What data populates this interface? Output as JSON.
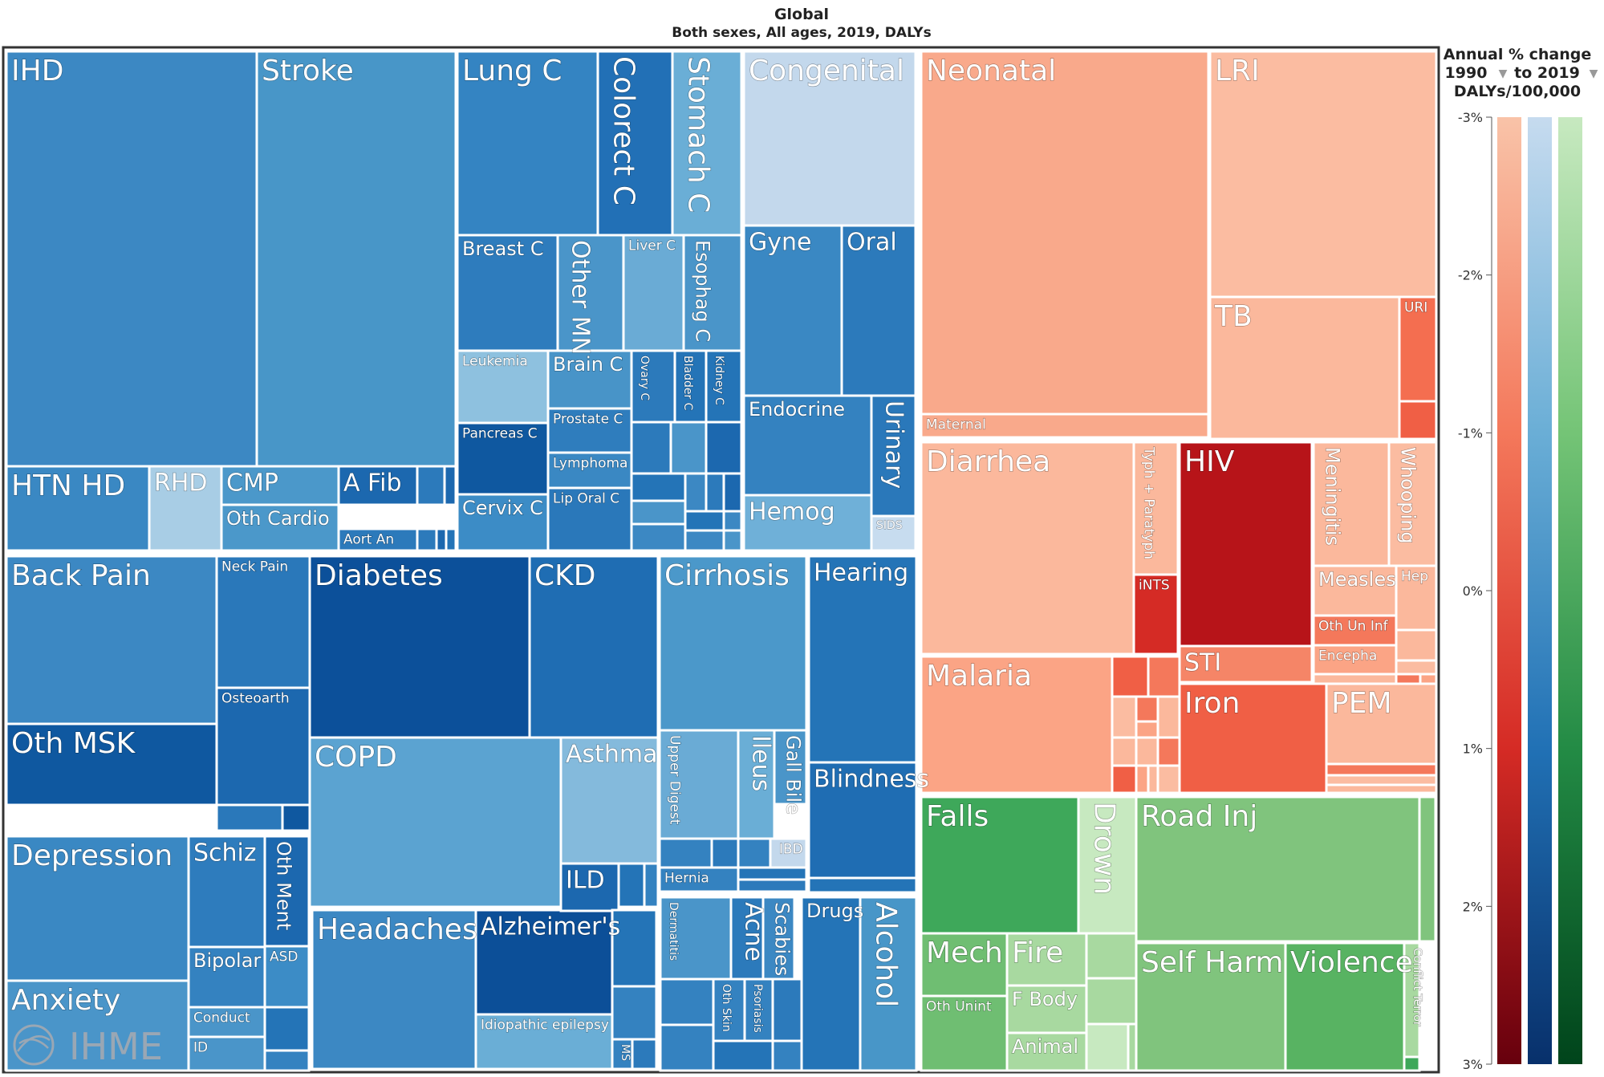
{
  "chart_data": {
    "type": "treemap",
    "title": "Global",
    "subtitle": "Both sexes, All ages, 2019, DALYs",
    "legend": {
      "title_lines": [
        "Annual % change",
        "1990",
        "to 2019",
        "DALYs/100,000"
      ],
      "ticks": [
        "-3%",
        "-2%",
        "-1%",
        "0%",
        "1%",
        "2%",
        "3%"
      ],
      "colors": {
        "communicable": [
          "#f9c3a8",
          "#f4785b",
          "#d52b25",
          "#67000d"
        ],
        "ncd": [
          "#c6dbef",
          "#6aaed6",
          "#2171b5",
          "#08306b"
        ],
        "injuries": [
          "#c7e9c0",
          "#74c476",
          "#238b45",
          "#00441b"
        ]
      }
    },
    "logo": "IHME",
    "cells": [
      {
        "label": "IHD",
        "color": "#3c88c3",
        "size": "xl",
        "vertical": false
      },
      {
        "label": "Stroke",
        "color": "#4896c8",
        "size": "xl",
        "vertical": false
      },
      {
        "label": "Lung C",
        "color": "#3484c2",
        "size": "xl",
        "vertical": false
      },
      {
        "label": "Colorect C",
        "color": "#2270b6",
        "size": "xl",
        "vertical": true
      },
      {
        "label": "Stomach C",
        "color": "#6aaed6",
        "size": "xl",
        "vertical": true
      },
      {
        "label": "Congenital",
        "color": "#c3d8ec",
        "size": "xl",
        "vertical": false
      },
      {
        "label": "Breast C",
        "color": "#2e7cbd",
        "size": "m",
        "vertical": false
      },
      {
        "label": "Other MN",
        "color": "#4a95c9",
        "size": "l",
        "vertical": true
      },
      {
        "label": "Liver C",
        "color": "#6aabd5",
        "size": "s",
        "vertical": false
      },
      {
        "label": "Esophag C",
        "color": "#4a95c9",
        "size": "m",
        "vertical": true
      },
      {
        "label": "Gyne",
        "color": "#3a88c3",
        "size": "l",
        "vertical": false
      },
      {
        "label": "Oral",
        "color": "#2c7abb",
        "size": "l",
        "vertical": false
      },
      {
        "label": "Leukemia",
        "color": "#8ec1df",
        "size": "s",
        "vertical": false
      },
      {
        "label": "Brain C",
        "color": "#4894c8",
        "size": "m",
        "vertical": false
      },
      {
        "label": "Ovary C",
        "color": "#2c7abb",
        "size": "xs",
        "vertical": true
      },
      {
        "label": "Bladder C",
        "color": "#2474b7",
        "size": "xs",
        "vertical": true
      },
      {
        "label": "Kidney C",
        "color": "#2474b7",
        "size": "xs",
        "vertical": true
      },
      {
        "label": "Prostate C",
        "color": "#2f7dbd",
        "size": "s",
        "vertical": false
      },
      {
        "label": "Pancreas C",
        "color": "#0f58a0",
        "size": "s",
        "vertical": false
      },
      {
        "label": "Lymphoma",
        "color": "#3a88c3",
        "size": "s",
        "vertical": false
      },
      {
        "label": "Cervix C",
        "color": "#3c8cc6",
        "size": "m",
        "vertical": false
      },
      {
        "label": "Lip Oral C",
        "color": "#2a78ba",
        "size": "s",
        "vertical": false
      },
      {
        "label": "Endocrine",
        "color": "#3482c0",
        "size": "m",
        "vertical": false
      },
      {
        "label": "Urinary",
        "color": "#2a78ba",
        "size": "l",
        "vertical": true
      },
      {
        "label": "Hemog",
        "color": "#6fb0d8",
        "size": "l",
        "vertical": false
      },
      {
        "label": "SIDS",
        "color": "#c7dcef",
        "size": "xs",
        "vertical": false
      },
      {
        "label": "HTN HD",
        "color": "#3a88c3",
        "size": "xl",
        "vertical": false
      },
      {
        "label": "RHD",
        "color": "#a8cde5",
        "size": "l",
        "vertical": false
      },
      {
        "label": "CMP",
        "color": "#4b98ca",
        "size": "l",
        "vertical": false
      },
      {
        "label": "Oth Cardio",
        "color": "#4b98ca",
        "size": "m",
        "vertical": false
      },
      {
        "label": "A Fib",
        "color": "#1c68af",
        "size": "l",
        "vertical": false
      },
      {
        "label": "Aort An",
        "color": "#2c7abb",
        "size": "s",
        "vertical": false
      },
      {
        "label": "Neonatal",
        "color": "#f9a98b",
        "size": "xl",
        "vertical": false
      },
      {
        "label": "Maternal",
        "color": "#f9a98b",
        "size": "s",
        "vertical": false
      },
      {
        "label": "LRI",
        "color": "#fbbca1",
        "size": "xl",
        "vertical": false
      },
      {
        "label": "TB",
        "color": "#fbb89c",
        "size": "xl",
        "vertical": false
      },
      {
        "label": "URI",
        "color": "#f46e50",
        "size": "s",
        "vertical": false
      },
      {
        "label": "Diarrhea",
        "color": "#fbb89c",
        "size": "xl",
        "vertical": false
      },
      {
        "label": "Typh + Paratyph",
        "color": "#fbb89c",
        "size": "s",
        "vertical": true
      },
      {
        "label": "iNTS",
        "color": "#d52b25",
        "size": "s",
        "vertical": false
      },
      {
        "label": "HIV",
        "color": "#b71419",
        "size": "xl",
        "vertical": false
      },
      {
        "label": "Meningitis",
        "color": "#fbb89c",
        "size": "m",
        "vertical": true
      },
      {
        "label": "Whooping",
        "color": "#fbbca1",
        "size": "m",
        "vertical": true
      },
      {
        "label": "Measles",
        "color": "#fbb89c",
        "size": "m",
        "vertical": false
      },
      {
        "label": "Hep",
        "color": "#fbb89c",
        "size": "s",
        "vertical": false
      },
      {
        "label": "Oth Un Inf",
        "color": "#f4785b",
        "size": "s",
        "vertical": false
      },
      {
        "label": "Encepha",
        "color": "#fba485",
        "size": "s",
        "vertical": false
      },
      {
        "label": "STI",
        "color": "#f58567",
        "size": "l",
        "vertical": false
      },
      {
        "label": "Malaria",
        "color": "#fba485",
        "size": "xl",
        "vertical": false
      },
      {
        "label": "Iron",
        "color": "#f05f45",
        "size": "xl",
        "vertical": false
      },
      {
        "label": "PEM",
        "color": "#fbb89c",
        "size": "xl",
        "vertical": false
      },
      {
        "label": "Back Pain",
        "color": "#3c88c3",
        "size": "xl",
        "vertical": false
      },
      {
        "label": "Neck Pain",
        "color": "#2a78ba",
        "size": "s",
        "vertical": false
      },
      {
        "label": "Oth MSK",
        "color": "#0f58a0",
        "size": "xl",
        "vertical": false
      },
      {
        "label": "Osteoarth",
        "color": "#1c68af",
        "size": "s",
        "vertical": false
      },
      {
        "label": "Diabetes",
        "color": "#0c509a",
        "size": "xl",
        "vertical": false
      },
      {
        "label": "CKD",
        "color": "#1f6db3",
        "size": "xl",
        "vertical": false
      },
      {
        "label": "COPD",
        "color": "#5ba3d1",
        "size": "xl",
        "vertical": false
      },
      {
        "label": "Asthma",
        "color": "#84badc",
        "size": "l",
        "vertical": false
      },
      {
        "label": "ILD",
        "color": "#1c68af",
        "size": "l",
        "vertical": false
      },
      {
        "label": "Cirrhosis",
        "color": "#4b98ca",
        "size": "xl",
        "vertical": false
      },
      {
        "label": "Upper Digest",
        "color": "#6aabd5",
        "size": "s",
        "vertical": true
      },
      {
        "label": "Ileus",
        "color": "#6aaed6",
        "size": "l",
        "vertical": true
      },
      {
        "label": "Gall Bile",
        "color": "#4a95c9",
        "size": "m",
        "vertical": true
      },
      {
        "label": "IBD",
        "color": "#3482c0",
        "size": "s",
        "vertical": false
      },
      {
        "label": "Hernia",
        "color": "#3482c0",
        "size": "s",
        "vertical": false
      },
      {
        "label": "Hearing",
        "color": "#2474b7",
        "size": "l",
        "vertical": false
      },
      {
        "label": "Blindness",
        "color": "#1f6db3",
        "size": "l",
        "vertical": false
      },
      {
        "label": "Depression",
        "color": "#3a88c3",
        "size": "xl",
        "vertical": false
      },
      {
        "label": "Schiz",
        "color": "#2e7cbd",
        "size": "l",
        "vertical": false
      },
      {
        "label": "Oth Ment",
        "color": "#1c68af",
        "size": "m",
        "vertical": true
      },
      {
        "label": "Bipolar",
        "color": "#3482c0",
        "size": "m",
        "vertical": false
      },
      {
        "label": "ASD",
        "color": "#3c8cc6",
        "size": "s",
        "vertical": false
      },
      {
        "label": "Conduct",
        "color": "#4a95c9",
        "size": "s",
        "vertical": false
      },
      {
        "label": "ID",
        "color": "#4a95c9",
        "size": "s",
        "vertical": false
      },
      {
        "label": "Anxiety",
        "color": "#4a95c9",
        "size": "xl",
        "vertical": false
      },
      {
        "label": "Headaches",
        "color": "#3c88c3",
        "size": "xl",
        "vertical": false
      },
      {
        "label": "Alzheimer's",
        "color": "#0c4f98",
        "size": "l",
        "vertical": false
      },
      {
        "label": "Idiopathic epilepsy",
        "color": "#6aaed6",
        "size": "s",
        "vertical": false
      },
      {
        "label": "MS",
        "color": "#3482c0",
        "size": "xs",
        "vertical": true
      },
      {
        "label": "Dermatitis",
        "color": "#4a95c9",
        "size": "xs",
        "vertical": true
      },
      {
        "label": "Acne",
        "color": "#2c7abb",
        "size": "l",
        "vertical": true
      },
      {
        "label": "Scabies",
        "color": "#3c88c3",
        "size": "m",
        "vertical": true
      },
      {
        "label": "Oth Skin",
        "color": "#3482c0",
        "size": "xs",
        "vertical": true
      },
      {
        "label": "Psoriasis",
        "color": "#3482c0",
        "size": "xs",
        "vertical": true
      },
      {
        "label": "Drugs",
        "color": "#2474b7",
        "size": "m",
        "vertical": false
      },
      {
        "label": "Alcohol",
        "color": "#4896c8",
        "size": "xl",
        "vertical": true
      },
      {
        "label": "Falls",
        "color": "#3ea85a",
        "size": "xl",
        "vertical": false
      },
      {
        "label": "Drown",
        "color": "#c7e9c0",
        "size": "xl",
        "vertical": true
      },
      {
        "label": "Road Inj",
        "color": "#80c47d",
        "size": "xl",
        "vertical": false
      },
      {
        "label": "Mech",
        "color": "#6fbe72",
        "size": "xl",
        "vertical": false
      },
      {
        "label": "Oth Unint",
        "color": "#6fbe72",
        "size": "s",
        "vertical": false
      },
      {
        "label": "Fire",
        "color": "#a8d9a0",
        "size": "xl",
        "vertical": false
      },
      {
        "label": "F Body",
        "color": "#a8d9a0",
        "size": "m",
        "vertical": false
      },
      {
        "label": "Animal",
        "color": "#a8d9a0",
        "size": "m",
        "vertical": false
      },
      {
        "label": "Self Harm",
        "color": "#80c47d",
        "size": "xl",
        "vertical": false
      },
      {
        "label": "Violence",
        "color": "#58b362",
        "size": "xl",
        "vertical": false
      },
      {
        "label": "Conflict Terror",
        "color": "#a8d9a0",
        "size": "xs",
        "vertical": true
      }
    ]
  }
}
